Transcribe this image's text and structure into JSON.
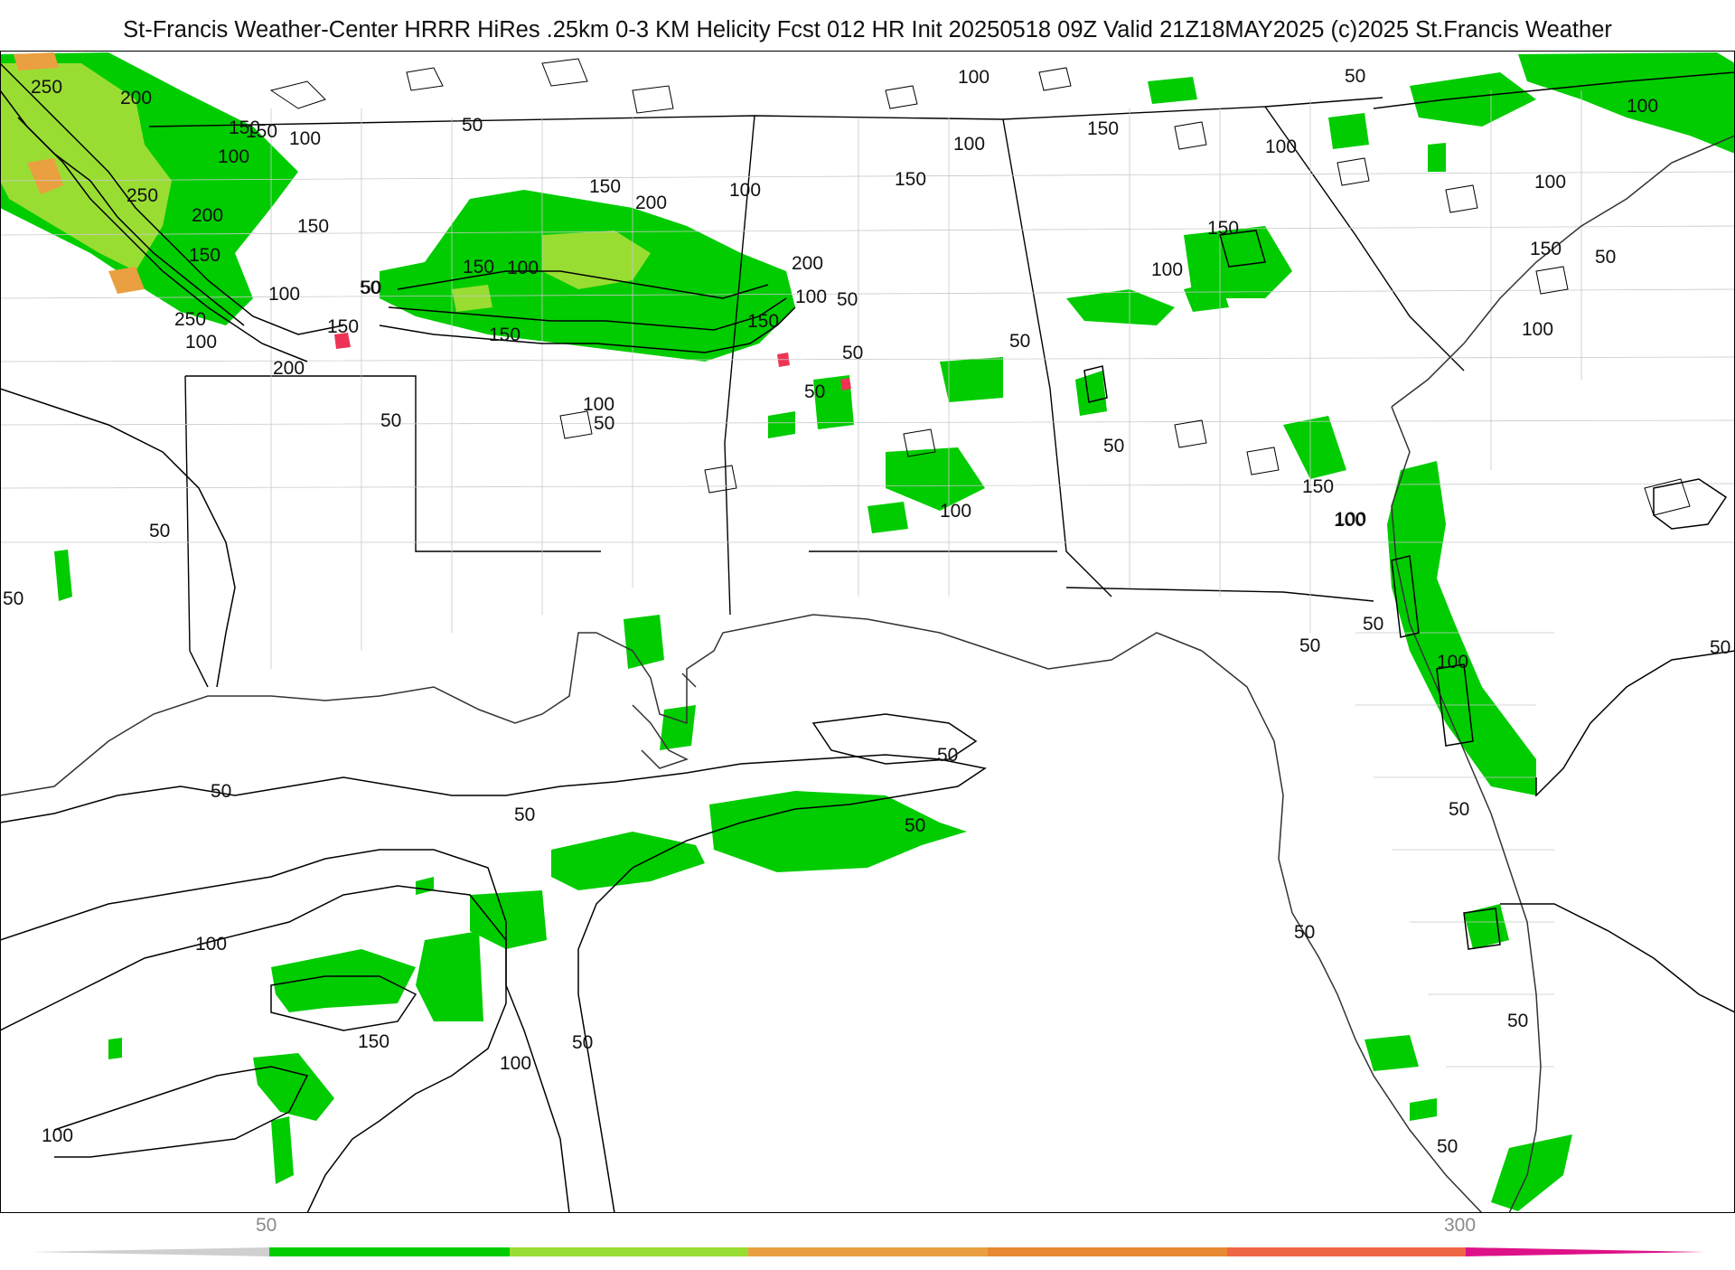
{
  "header": {
    "title": "St-Francis Weather-Center HRRR HiRes .25km 0-3 KM Helicity Fcst 012 HR Init 20250518 09Z  Valid 21Z18MAY2025   (c)2025 St.Francis Weather"
  },
  "legend": {
    "tick_labels": [
      "50",
      "300"
    ],
    "colors": [
      "#00cc00",
      "#99dd33",
      "#eaa040",
      "#e88a33",
      "#ee6644",
      "#ee3355",
      "#dd1188"
    ]
  },
  "contour_labels": {
    "c1": "250",
    "c2": "200",
    "c3": "150",
    "c4": "100",
    "c5": "250",
    "c6": "200",
    "c7": "150",
    "c8": "150",
    "c9": "100",
    "c10": "50",
    "c11": "150",
    "c12": "250",
    "c13": "100",
    "c14": "200",
    "c15": "150",
    "c16": "100",
    "c17": "50",
    "c18": "150",
    "c19": "200",
    "c20": "100",
    "c21": "200",
    "c22": "50",
    "c23": "100",
    "c24": "50",
    "c25": "150",
    "c26": "100",
    "c27": "50",
    "c28": "150",
    "c29": "100",
    "c30": "150",
    "c31": "100",
    "c32": "50",
    "c33": "50",
    "c34": "100",
    "c35": "50",
    "c36": "100",
    "c37": "100",
    "c38": "150",
    "c39": "100",
    "c40": "50",
    "c41": "100",
    "c42": "150",
    "c43": "150",
    "c44": "50",
    "c45": "100",
    "c46": "150",
    "c47": "100",
    "c48": "50",
    "c49": "100",
    "c50": "50",
    "c51": "50",
    "c52": "50",
    "c53": "50",
    "c54": "50",
    "c55": "50",
    "c56": "50",
    "c57": "100",
    "c58": "150",
    "c59": "100",
    "c60": "50",
    "c61": "100",
    "c62": "50",
    "c63": "50",
    "c64": "50",
    "c65": "50",
    "c66": "50",
    "c67": "50",
    "c68": "50"
  }
}
